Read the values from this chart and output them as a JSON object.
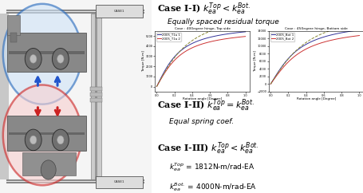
{
  "bg_color": "#ffffff",
  "case1_title": "Case I-I) $k_{ea}^{Top} < k_{ea}^{Bot.}$",
  "case1_subtitle": "Equally spaced residual torque",
  "graph1_title": "Case : 400egree hinge, Top side",
  "graph2_title": "Case : 450egree hinge, Bottom side",
  "graph1_xlabel": "Rotation angle [Degree]",
  "graph2_xlabel": "Rotation angle [Degree]",
  "graph1_ylabel": "Torque [N-m]",
  "graph2_ylabel": "Torque [N-m]",
  "graph1_legend": [
    "2005_T1a 1",
    "2005_T1a 2"
  ],
  "graph2_legend": [
    "2005_Bot 1",
    "2005_Bot 2"
  ],
  "graph1_line_colors": [
    "#333399",
    "#cc3333",
    "#888833"
  ],
  "graph2_line_colors": [
    "#333399",
    "#cc3333",
    "#888833"
  ],
  "case2_title": "Case I-II) $k_{ea}^{Top} = k_{ea}^{Bot.}$",
  "case2_subtitle": "Equal spring coef.",
  "case3_title": "Case I-III) $k_{ea}^{Top} < k_{ea}^{Bot.}$",
  "case3_line1": "$k_{ea}^{Top}$ = 1812N-m/rad-EA",
  "case3_line2": "$k_{ea}^{Bot.}$ = 4000N-m/rad-EA",
  "left_bg": "#e8e8e8",
  "left_rail_color": "#c0c0c0",
  "left_dark": "#707070",
  "left_med": "#909090",
  "blue_circle_edge": "#2266bb",
  "blue_circle_face": "#d0e4f8",
  "red_circle_edge": "#cc2222",
  "red_circle_face": "#f8d0d0",
  "arrow_blue": "#2255cc",
  "arrow_red": "#cc2222",
  "gear_dark": "#555555",
  "gear_med": "#777777",
  "gear_light": "#aaaaaa",
  "label_box_edge": "#555555",
  "label_box_face": "#dddddd"
}
